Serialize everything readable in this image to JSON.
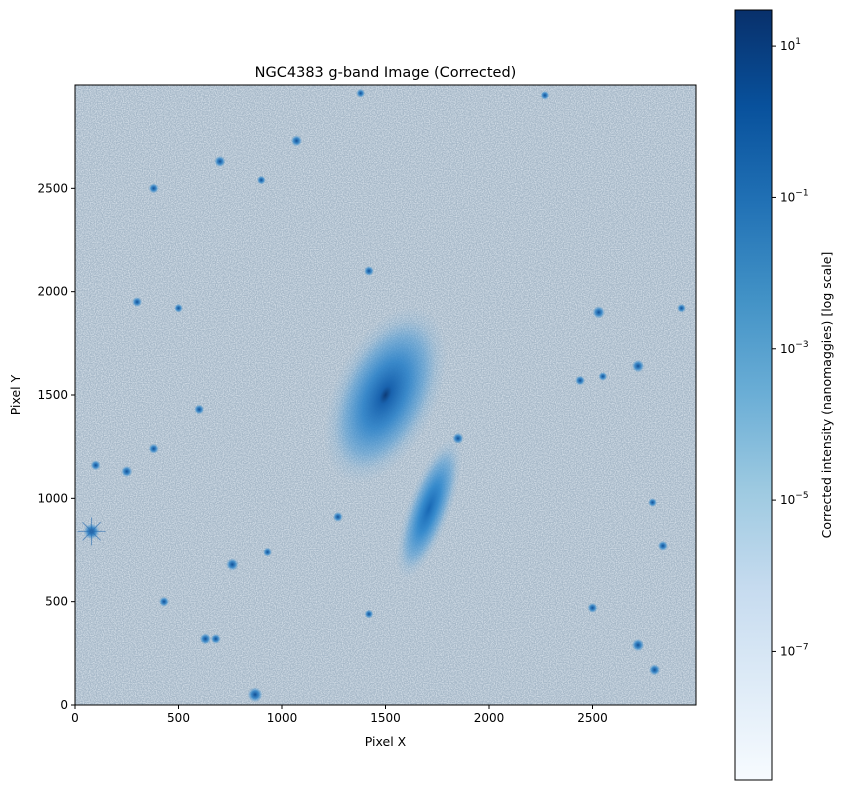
{
  "chart_data": {
    "type": "heatmap",
    "title": "NGC4383 g-band Image (Corrected)",
    "xlabel": "Pixel X",
    "ylabel": "Pixel Y",
    "xlim": [
      0,
      3000
    ],
    "ylim": [
      0,
      3000
    ],
    "x_ticks": [
      0,
      500,
      1000,
      1500,
      2000,
      2500
    ],
    "y_ticks": [
      0,
      500,
      1000,
      1500,
      2000,
      2500
    ],
    "colormap": "Blues",
    "colorbar": {
      "label": "Corrected intensity (nanomaggies) [log scale]",
      "scale": "log",
      "range": [
        2e-09,
        30
      ],
      "ticks": [
        {
          "base": "10",
          "exp": "1",
          "value": 10
        },
        {
          "base": "10",
          "exp": "−1",
          "value": 0.1
        },
        {
          "base": "10",
          "exp": "−3",
          "value": 0.001
        },
        {
          "base": "10",
          "exp": "−5",
          "value": 1e-05
        },
        {
          "base": "10",
          "exp": "−7",
          "value": 1e-07
        }
      ]
    },
    "galaxies": [
      {
        "x": 1500,
        "y": 1500,
        "semi_major": 380,
        "semi_minor": 200,
        "angle_deg": 25,
        "peak": 10
      },
      {
        "x": 1710,
        "y": 950,
        "semi_major": 300,
        "semi_minor": 85,
        "angle_deg": 20,
        "peak": 0.5
      }
    ],
    "sources": [
      {
        "x": 80,
        "y": 840,
        "brightness": 1.0
      },
      {
        "x": 700,
        "y": 2630,
        "brightness": 0.6
      },
      {
        "x": 1070,
        "y": 2730,
        "brightness": 0.6
      },
      {
        "x": 380,
        "y": 2500,
        "brightness": 0.5
      },
      {
        "x": 2530,
        "y": 1900,
        "brightness": 0.7
      },
      {
        "x": 2720,
        "y": 1640,
        "brightness": 0.7
      },
      {
        "x": 2440,
        "y": 1570,
        "brightness": 0.5
      },
      {
        "x": 1850,
        "y": 1290,
        "brightness": 0.6
      },
      {
        "x": 1420,
        "y": 2100,
        "brightness": 0.5
      },
      {
        "x": 1270,
        "y": 910,
        "brightness": 0.5
      },
      {
        "x": 760,
        "y": 680,
        "brightness": 0.7
      },
      {
        "x": 630,
        "y": 320,
        "brightness": 0.6
      },
      {
        "x": 680,
        "y": 320,
        "brightness": 0.5
      },
      {
        "x": 870,
        "y": 50,
        "brightness": 0.9
      },
      {
        "x": 2720,
        "y": 290,
        "brightness": 0.7
      },
      {
        "x": 2800,
        "y": 170,
        "brightness": 0.6
      },
      {
        "x": 250,
        "y": 1130,
        "brightness": 0.6
      },
      {
        "x": 380,
        "y": 1240,
        "brightness": 0.5
      },
      {
        "x": 100,
        "y": 1160,
        "brightness": 0.5
      },
      {
        "x": 900,
        "y": 2540,
        "brightness": 0.4
      },
      {
        "x": 600,
        "y": 1430,
        "brightness": 0.5
      },
      {
        "x": 2840,
        "y": 770,
        "brightness": 0.5
      },
      {
        "x": 2500,
        "y": 470,
        "brightness": 0.5
      },
      {
        "x": 430,
        "y": 500,
        "brightness": 0.5
      },
      {
        "x": 300,
        "y": 1950,
        "brightness": 0.5
      },
      {
        "x": 2930,
        "y": 1920,
        "brightness": 0.4
      },
      {
        "x": 2790,
        "y": 980,
        "brightness": 0.4
      },
      {
        "x": 1420,
        "y": 440,
        "brightness": 0.4
      },
      {
        "x": 1380,
        "y": 2960,
        "brightness": 0.4
      },
      {
        "x": 2270,
        "y": 2950,
        "brightness": 0.4
      },
      {
        "x": 2550,
        "y": 1590,
        "brightness": 0.4
      },
      {
        "x": 500,
        "y": 1920,
        "brightness": 0.4
      },
      {
        "x": 930,
        "y": 740,
        "brightness": 0.4
      }
    ]
  }
}
